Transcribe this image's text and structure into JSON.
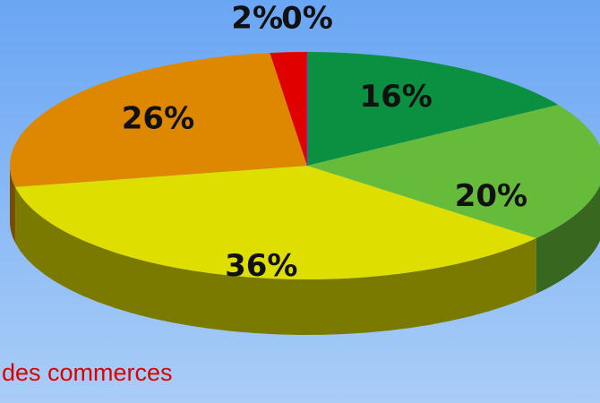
{
  "chart_data": {
    "type": "pie",
    "categories": [
      null,
      null,
      null,
      null,
      null,
      null
    ],
    "values": [
      16,
      20,
      36,
      26,
      2,
      0
    ],
    "value_labels": [
      "16%",
      "20%",
      "36%",
      "26%",
      "2%",
      "0%"
    ],
    "colors": [
      "#0a9040",
      "#66bb3a",
      "#dede00",
      "#dd8800",
      "#e00000",
      "#8a2be2"
    ],
    "annotation": "des commerces"
  }
}
